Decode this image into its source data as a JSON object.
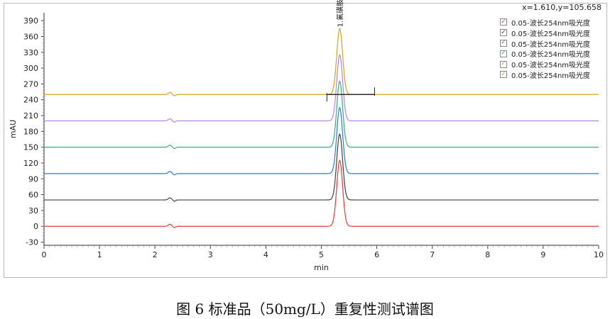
{
  "readout": "x=1.610,y=105.658",
  "caption": "图 6 标准品（50mg/L）重复性测试谱图",
  "chart_data": {
    "type": "line",
    "xlabel": "min",
    "ylabel": "mAU",
    "xlim": [
      0,
      10
    ],
    "ylim": [
      -36,
      405
    ],
    "xticks": [
      0,
      1,
      2,
      3,
      4,
      5,
      6,
      7,
      8,
      9,
      10
    ],
    "yticks": [
      -30,
      0,
      30,
      60,
      90,
      120,
      150,
      180,
      210,
      240,
      270,
      300,
      330,
      360,
      390
    ],
    "peak_label": "1.氟磺胺草醚-5.331",
    "integration_markers": [
      5.1,
      5.96
    ],
    "grid": false,
    "legend_position": "top-right",
    "series": [
      {
        "name": "0.05-波长254nm吸光度",
        "color": "#e8393a",
        "baseline": 0,
        "peak_x": 5.331,
        "peak_height": 125
      },
      {
        "name": "0.05-波长254nm吸光度",
        "color": "#404040",
        "baseline": 50,
        "peak_x": 5.331,
        "peak_height": 125
      },
      {
        "name": "0.05-波长254nm吸光度",
        "color": "#2b7bd6",
        "baseline": 100,
        "peak_x": 5.331,
        "peak_height": 125
      },
      {
        "name": "0.05-波长254nm吸光度",
        "color": "#2fb37a",
        "baseline": 150,
        "peak_x": 5.331,
        "peak_height": 125
      },
      {
        "name": "0.05-波长254nm吸光度",
        "color": "#b983e6",
        "baseline": 200,
        "peak_x": 5.331,
        "peak_height": 125
      },
      {
        "name": "0.05-波长254nm吸光度",
        "color": "#d9a21b",
        "baseline": 250,
        "peak_x": 5.331,
        "peak_height": 125
      }
    ]
  }
}
